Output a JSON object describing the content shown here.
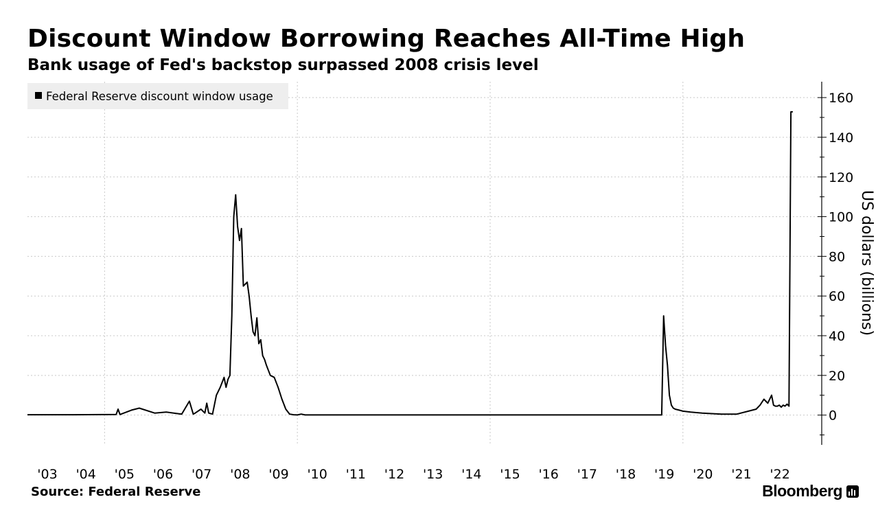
{
  "title": "Discount Window Borrowing Reaches All-Time High",
  "subtitle": "Bank usage of Fed's backstop surpassed 2008 crisis level",
  "source": "Source: Federal Reserve",
  "brand": "Bloomberg",
  "chart_data": {
    "type": "line",
    "title": "Discount Window Borrowing Reaches All-Time High",
    "subtitle": "Bank usage of Fed's backstop surpassed 2008 crisis level",
    "ylabel": "US dollars (billions)",
    "xlabel": "",
    "ylim": [
      -15,
      168
    ],
    "yticks": [
      0,
      20,
      40,
      60,
      80,
      100,
      120,
      140,
      160
    ],
    "xlim": [
      2003,
      2023.6
    ],
    "xticks": [
      2003,
      2004,
      2005,
      2006,
      2007,
      2008,
      2009,
      2010,
      2011,
      2012,
      2013,
      2014,
      2015,
      2016,
      2017,
      2018,
      2019,
      2020,
      2021,
      2022
    ],
    "xtick_labels": [
      "'03",
      "'04",
      "'05",
      "'06",
      "'07",
      "'08",
      "'09",
      "'10",
      "'11",
      "'12",
      "'13",
      "'14",
      "'15",
      "'16",
      "'17",
      "'18",
      "'19",
      "'20",
      "'21",
      "'22"
    ],
    "vertical_gridlines_at": [
      2005,
      2010,
      2015,
      2020
    ],
    "grid": true,
    "legend_position": "top-left",
    "line_color": "#000000",
    "series": [
      {
        "name": "Federal Reserve discount window usage",
        "x": [
          2003.0,
          2004.2,
          2005.3,
          2005.35,
          2005.4,
          2005.7,
          2005.9,
          2006.3,
          2006.6,
          2007.0,
          2007.2,
          2007.3,
          2007.35,
          2007.5,
          2007.6,
          2007.65,
          2007.7,
          2007.8,
          2007.9,
          2008.0,
          2008.1,
          2008.15,
          2008.2,
          2008.25,
          2008.3,
          2008.35,
          2008.4,
          2008.45,
          2008.5,
          2008.55,
          2008.6,
          2008.7,
          2008.75,
          2008.8,
          2008.85,
          2008.9,
          2008.95,
          2009.0,
          2009.05,
          2009.1,
          2009.15,
          2009.2,
          2009.3,
          2009.4,
          2009.5,
          2009.6,
          2009.7,
          2009.8,
          2009.9,
          2010.0,
          2010.1,
          2010.2,
          2010.5,
          2011.0,
          2015.0,
          2019.0,
          2019.45,
          2019.5,
          2019.52,
          2019.55,
          2019.6,
          2019.65,
          2019.7,
          2019.75,
          2019.8,
          2019.9,
          2020.0,
          2020.2,
          2020.5,
          2021.0,
          2021.4,
          2021.7,
          2021.9,
          2022.0,
          2022.1,
          2022.2,
          2022.3,
          2022.35,
          2022.4,
          2022.45,
          2022.5,
          2022.55,
          2022.6,
          2022.65,
          2022.7,
          2022.75,
          2022.8,
          2022.85
        ],
        "values": [
          0.2,
          0.2,
          0.3,
          3.0,
          0.3,
          2.5,
          3.5,
          1.0,
          1.5,
          0.5,
          7.0,
          0.5,
          1.0,
          3.0,
          1.0,
          6.0,
          1.0,
          0.5,
          10.0,
          14.0,
          19.0,
          14.0,
          18.0,
          20.0,
          50.0,
          100.0,
          111.0,
          95.0,
          88.0,
          94.0,
          65.0,
          67.0,
          60.0,
          50.0,
          42.0,
          40.0,
          49.0,
          36.0,
          38.0,
          30.0,
          28.0,
          25.0,
          20.0,
          19.0,
          14.0,
          8.0,
          3.0,
          0.5,
          0.2,
          0.1,
          0.5,
          0.1,
          0.1,
          0.1,
          0.1,
          0.1,
          0.1,
          50.0,
          44.0,
          35.0,
          25.0,
          10.0,
          5.0,
          3.5,
          3.0,
          2.5,
          2.0,
          1.5,
          1.0,
          0.5,
          0.5,
          2.0,
          3.0,
          5.0,
          8.0,
          6.0,
          10.0,
          5.0,
          4.5,
          4.5,
          5.0,
          4.0,
          5.0,
          4.5,
          5.5,
          4.5,
          152.8,
          152.8
        ]
      }
    ]
  }
}
